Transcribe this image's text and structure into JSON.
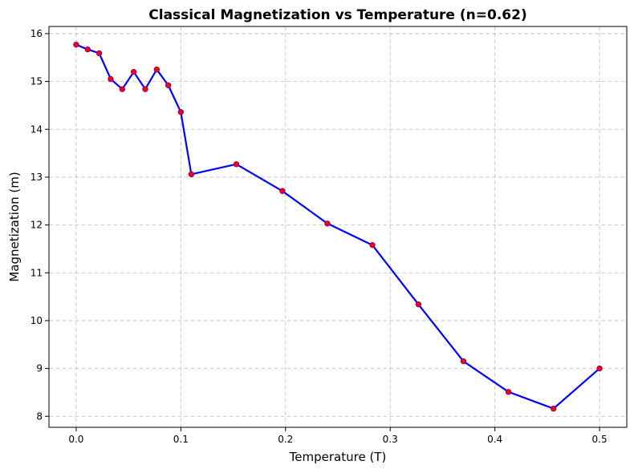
{
  "chart_data": {
    "type": "line",
    "title": "Classical Magnetization vs Temperature (n=0.62)",
    "xlabel": "Temperature (T)",
    "ylabel": "Magnetization (m)",
    "xlim": [
      -0.026,
      0.526
    ],
    "ylim": [
      7.77,
      16.15
    ],
    "xticks": [
      0.0,
      0.1,
      0.2,
      0.3,
      0.4,
      0.5
    ],
    "xtick_labels": [
      "0.0",
      "0.1",
      "0.2",
      "0.3",
      "0.4",
      "0.5"
    ],
    "yticks": [
      8,
      9,
      10,
      11,
      12,
      13,
      14,
      15,
      16
    ],
    "ytick_labels": [
      "8",
      "9",
      "10",
      "11",
      "12",
      "13",
      "14",
      "15",
      "16"
    ],
    "grid": true,
    "grid_style": "dashed",
    "series": [
      {
        "line_color": "#0000ff",
        "marker_face_color": "#ff0000",
        "marker_edge_color": "#800080",
        "x": [
          0.0,
          0.011,
          0.022,
          0.033,
          0.044,
          0.055,
          0.066,
          0.077,
          0.088,
          0.1,
          0.11,
          0.153,
          0.197,
          0.24,
          0.283,
          0.327,
          0.37,
          0.413,
          0.456,
          0.5
        ],
        "y": [
          15.77,
          15.67,
          15.59,
          15.05,
          14.84,
          15.2,
          14.84,
          15.25,
          14.92,
          14.36,
          13.06,
          13.27,
          12.71,
          12.03,
          11.58,
          10.34,
          9.15,
          8.51,
          8.16,
          9.0
        ]
      }
    ]
  }
}
